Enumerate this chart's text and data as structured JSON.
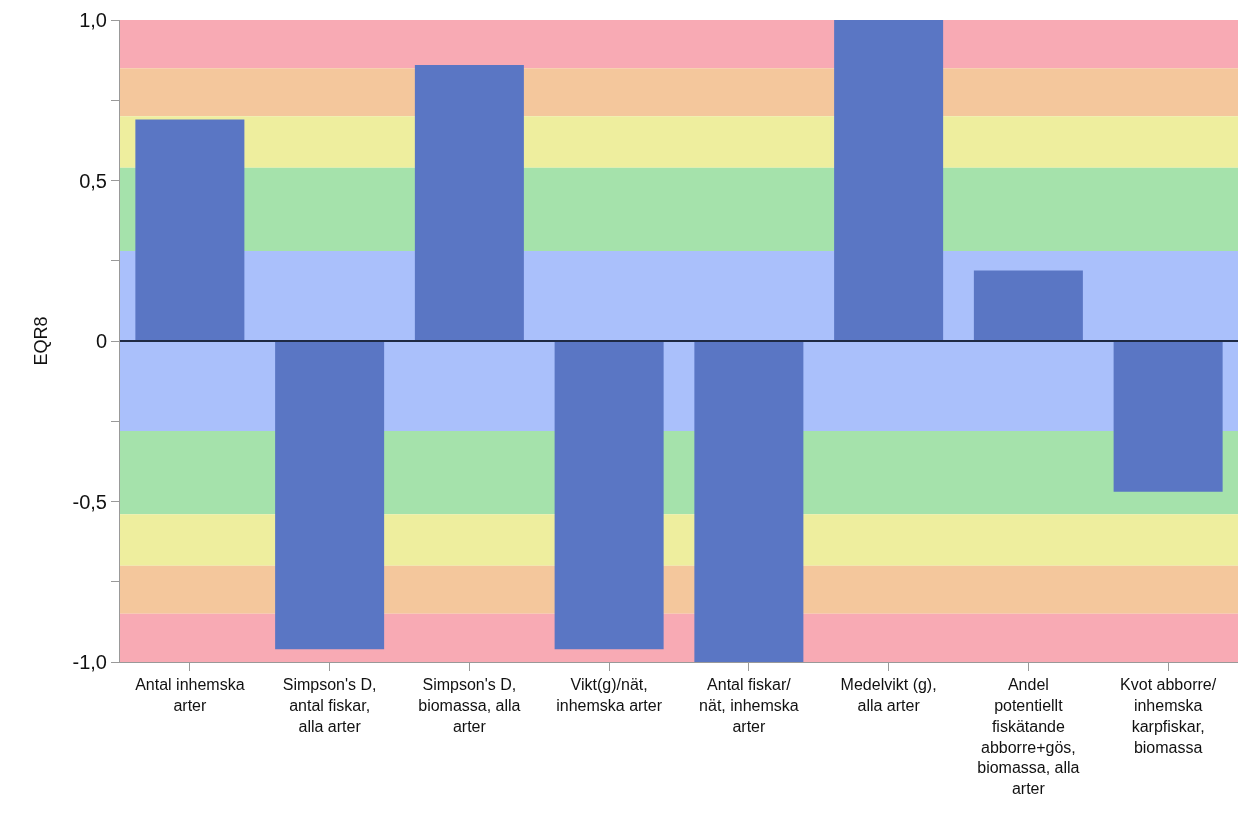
{
  "chart_data": {
    "type": "bar",
    "ylabel": "EQR8",
    "categories": [
      "Antal inhemska arter",
      "Simpson's D, antal fiskar, alla arter",
      "Simpson's D, biomassa, alla arter",
      "Vikt(g)/nät, inhemska arter",
      "Antal fiskar/nät, inhemska arter",
      "Medelvikt (g), alla arter",
      "Andel potentiellt fiskätande abborre+gös, biomassa, alla arter",
      "Kvot abborre/inhemska karpfiskar, biomassa"
    ],
    "values": [
      0.69,
      -0.96,
      0.86,
      -0.96,
      -1.0,
      1.0,
      0.22,
      -0.47
    ],
    "color": "#5a76c4",
    "ylim": [
      -1.0,
      1.0
    ],
    "yticks": [
      {
        "value": -1.0,
        "label": "-1,0"
      },
      {
        "value": -0.75,
        "label": null
      },
      {
        "value": -0.5,
        "label": "-0,5"
      },
      {
        "value": -0.25,
        "label": null
      },
      0,
      {
        "value": 0.25,
        "label": null
      },
      {
        "value": 0.5,
        "label": "0,5"
      },
      {
        "value": 0.75,
        "label": null
      },
      {
        "value": 1.0,
        "label": "1,0"
      }
    ],
    "grid": false,
    "ref_lines": [
      {
        "axis": "y",
        "value": 0,
        "color": "#1f2a44"
      }
    ],
    "bands": [
      {
        "axis": "y",
        "from": 0.85,
        "to": 1.0,
        "color": "#f8aab4"
      },
      {
        "axis": "y",
        "from": 0.7,
        "to": 0.85,
        "color": "#f4c79c"
      },
      {
        "axis": "y",
        "from": 0.54,
        "to": 0.7,
        "color": "#eeee9e"
      },
      {
        "axis": "y",
        "from": 0.28,
        "to": 0.54,
        "color": "#a5e2ab"
      },
      {
        "axis": "y",
        "from": -0.28,
        "to": 0.28,
        "color": "#aac0fb"
      },
      {
        "axis": "y",
        "from": -0.54,
        "to": -0.28,
        "color": "#a5e2ab"
      },
      {
        "axis": "y",
        "from": -0.7,
        "to": -0.54,
        "color": "#eeee9e"
      },
      {
        "axis": "y",
        "from": -0.85,
        "to": -0.7,
        "color": "#f4c79c"
      },
      {
        "axis": "y",
        "from": -1.0,
        "to": -0.85,
        "color": "#f8aab4"
      }
    ]
  }
}
